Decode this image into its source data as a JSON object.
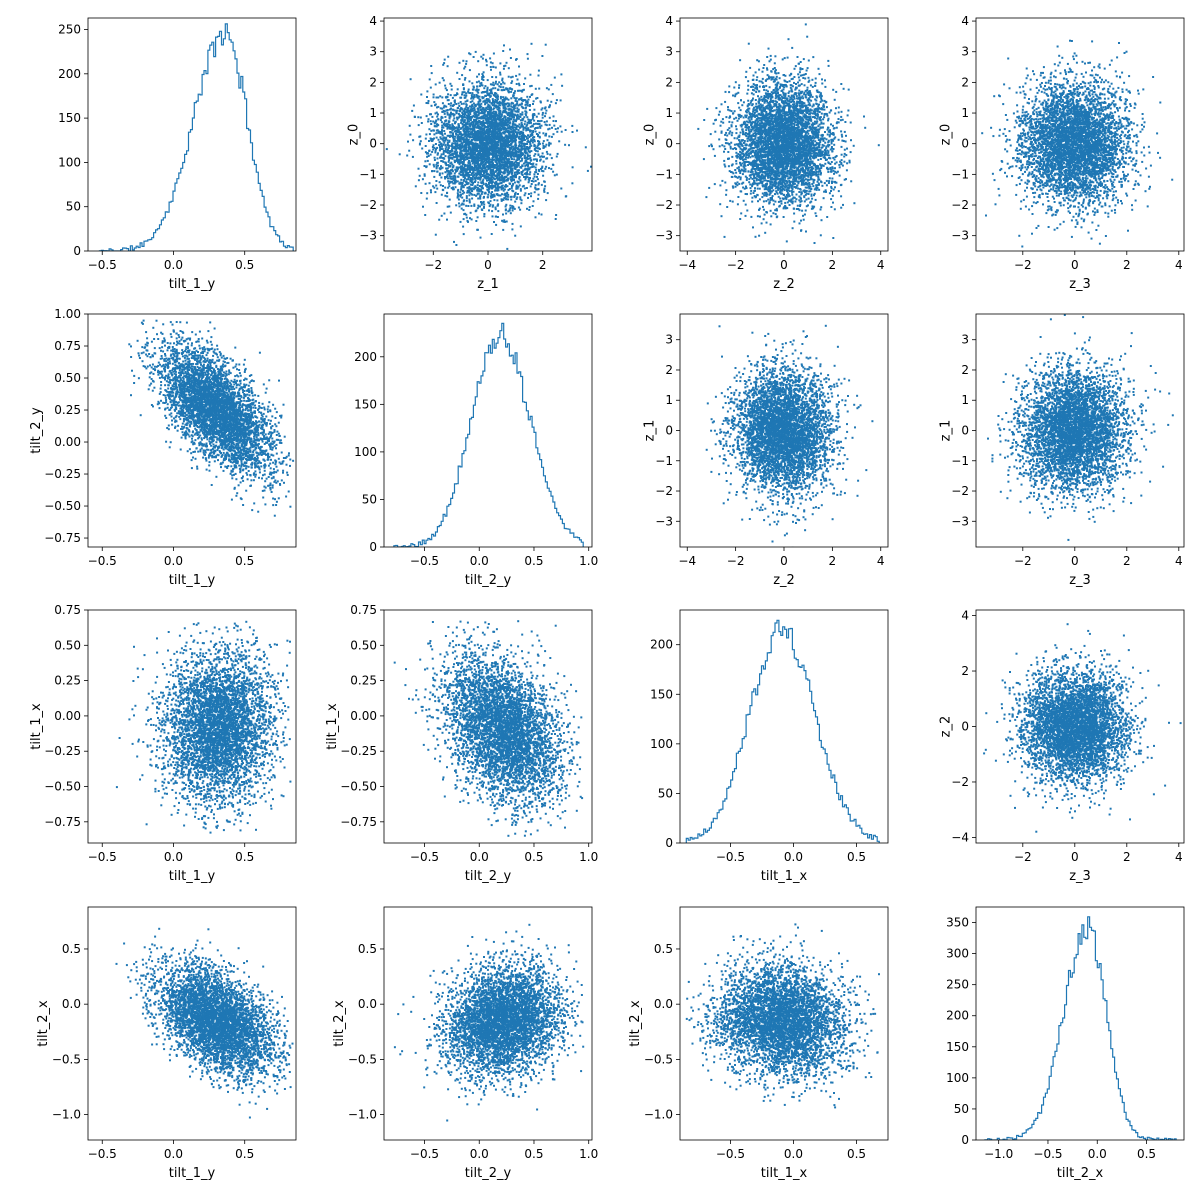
{
  "figure": {
    "rows": 4,
    "cols": 4,
    "color": "#1f77b4"
  },
  "chart_data": [
    {
      "type": "histogram",
      "row": 0,
      "col": 0,
      "xlabel": "tilt_1_y",
      "ylabel": "",
      "xlim": [
        -0.6,
        0.86
      ],
      "ylim": [
        0,
        263
      ],
      "xticks": [
        {
          "v": -0.5,
          "label": "−0.5"
        },
        {
          "v": 0,
          "label": "0.0"
        },
        {
          "v": 0.5,
          "label": "0.5"
        }
      ],
      "yticks": [
        {
          "v": 0,
          "label": "0"
        },
        {
          "v": 50,
          "label": "50"
        },
        {
          "v": 100,
          "label": "100"
        },
        {
          "v": 150,
          "label": "150"
        },
        {
          "v": 200,
          "label": "200"
        },
        {
          "v": 250,
          "label": "250"
        }
      ],
      "dist": {
        "center": 0.36,
        "left_width": 0.22,
        "right_width": 0.16,
        "xmin": -0.52,
        "xmax": 0.84,
        "peak": 245,
        "bins": 100,
        "seed": 11
      }
    },
    {
      "type": "scatter",
      "row": 0,
      "col": 1,
      "xlabel": "z_1",
      "ylabel": "z_0",
      "xlim": [
        -3.8,
        3.8
      ],
      "ylim": [
        -3.5,
        4.1
      ],
      "xticks": [
        {
          "v": -2,
          "label": "−2"
        },
        {
          "v": 0,
          "label": "0"
        },
        {
          "v": 2,
          "label": "2"
        }
      ],
      "yticks": [
        {
          "v": -3,
          "label": "−3"
        },
        {
          "v": -2,
          "label": "−2"
        },
        {
          "v": -1,
          "label": "−1"
        },
        {
          "v": 0,
          "label": "0"
        },
        {
          "v": 1,
          "label": "1"
        },
        {
          "v": 2,
          "label": "2"
        },
        {
          "v": 3,
          "label": "3"
        },
        {
          "v": 4,
          "label": "4"
        }
      ],
      "dist": {
        "mx": 0,
        "sx": 1,
        "my": 0,
        "sy": 1,
        "rho": 0,
        "n": 4500,
        "seed": 21
      }
    },
    {
      "type": "scatter",
      "row": 0,
      "col": 2,
      "xlabel": "z_2",
      "ylabel": "z_0",
      "xlim": [
        -4.3,
        4.3
      ],
      "ylim": [
        -3.5,
        4.1
      ],
      "xticks": [
        {
          "v": -4,
          "label": "−4"
        },
        {
          "v": -2,
          "label": "−2"
        },
        {
          "v": 0,
          "label": "0"
        },
        {
          "v": 2,
          "label": "2"
        },
        {
          "v": 4,
          "label": "4"
        }
      ],
      "yticks": [
        {
          "v": -3,
          "label": "−3"
        },
        {
          "v": -2,
          "label": "−2"
        },
        {
          "v": -1,
          "label": "−1"
        },
        {
          "v": 0,
          "label": "0"
        },
        {
          "v": 1,
          "label": "1"
        },
        {
          "v": 2,
          "label": "2"
        },
        {
          "v": 3,
          "label": "3"
        },
        {
          "v": 4,
          "label": "4"
        }
      ],
      "dist": {
        "mx": 0,
        "sx": 1,
        "my": 0,
        "sy": 1,
        "rho": 0,
        "n": 4500,
        "seed": 31
      }
    },
    {
      "type": "scatter",
      "row": 0,
      "col": 3,
      "xlabel": "z_3",
      "ylabel": "z_0",
      "xlim": [
        -3.8,
        4.2
      ],
      "ylim": [
        -3.5,
        4.1
      ],
      "xticks": [
        {
          "v": -2,
          "label": "−2"
        },
        {
          "v": 0,
          "label": "0"
        },
        {
          "v": 2,
          "label": "2"
        },
        {
          "v": 4,
          "label": "4"
        }
      ],
      "yticks": [
        {
          "v": -3,
          "label": "−3"
        },
        {
          "v": -2,
          "label": "−2"
        },
        {
          "v": -1,
          "label": "−1"
        },
        {
          "v": 0,
          "label": "0"
        },
        {
          "v": 1,
          "label": "1"
        },
        {
          "v": 2,
          "label": "2"
        },
        {
          "v": 3,
          "label": "3"
        },
        {
          "v": 4,
          "label": "4"
        }
      ],
      "dist": {
        "mx": 0,
        "sx": 1,
        "my": 0,
        "sy": 1,
        "rho": 0,
        "n": 4500,
        "seed": 41
      }
    },
    {
      "type": "scatter",
      "row": 1,
      "col": 0,
      "xlabel": "tilt_1_y",
      "ylabel": "tilt_2_y",
      "xlim": [
        -0.6,
        0.86
      ],
      "ylim": [
        -0.82,
        1.0
      ],
      "xticks": [
        {
          "v": -0.5,
          "label": "−0.5"
        },
        {
          "v": 0,
          "label": "0.0"
        },
        {
          "v": 0.5,
          "label": "0.5"
        }
      ],
      "yticks": [
        {
          "v": -0.75,
          "label": "−0.75"
        },
        {
          "v": -0.5,
          "label": "−0.50"
        },
        {
          "v": -0.25,
          "label": "−0.25"
        },
        {
          "v": 0,
          "label": "0.00"
        },
        {
          "v": 0.25,
          "label": "0.25"
        },
        {
          "v": 0.5,
          "label": "0.50"
        },
        {
          "v": 0.75,
          "label": "0.75"
        },
        {
          "v": 1.0,
          "label": "1.00"
        }
      ],
      "dist": {
        "mx": 0.3,
        "sx": 0.2,
        "my": 0.25,
        "sy": 0.25,
        "rho": -0.62,
        "n": 4500,
        "seed": 51,
        "xclip": [
          -0.55,
          0.84
        ],
        "yclip": [
          -0.78,
          0.95
        ]
      }
    },
    {
      "type": "histogram",
      "row": 1,
      "col": 1,
      "xlabel": "tilt_2_y",
      "ylabel": "",
      "xlim": [
        -0.87,
        1.03
      ],
      "ylim": [
        0,
        245
      ],
      "xticks": [
        {
          "v": -0.5,
          "label": "−0.5"
        },
        {
          "v": 0,
          "label": "0.0"
        },
        {
          "v": 0.5,
          "label": "0.5"
        },
        {
          "v": 1.0,
          "label": "1.0"
        }
      ],
      "yticks": [
        {
          "v": 0,
          "label": "0"
        },
        {
          "v": 50,
          "label": "50"
        },
        {
          "v": 100,
          "label": "100"
        },
        {
          "v": 150,
          "label": "150"
        },
        {
          "v": 200,
          "label": "200"
        }
      ],
      "dist": {
        "center": 0.18,
        "left_width": 0.25,
        "right_width": 0.28,
        "xmin": -0.78,
        "xmax": 0.95,
        "peak": 225,
        "bins": 100,
        "seed": 61
      }
    },
    {
      "type": "scatter",
      "row": 1,
      "col": 2,
      "xlabel": "z_2",
      "ylabel": "z_1",
      "xlim": [
        -4.3,
        4.3
      ],
      "ylim": [
        -3.85,
        3.85
      ],
      "xticks": [
        {
          "v": -4,
          "label": "−4"
        },
        {
          "v": -2,
          "label": "−2"
        },
        {
          "v": 0,
          "label": "0"
        },
        {
          "v": 2,
          "label": "2"
        },
        {
          "v": 4,
          "label": "4"
        }
      ],
      "yticks": [
        {
          "v": -3,
          "label": "−3"
        },
        {
          "v": -2,
          "label": "−2"
        },
        {
          "v": -1,
          "label": "−1"
        },
        {
          "v": 0,
          "label": "0"
        },
        {
          "v": 1,
          "label": "1"
        },
        {
          "v": 2,
          "label": "2"
        },
        {
          "v": 3,
          "label": "3"
        }
      ],
      "dist": {
        "mx": 0,
        "sx": 1,
        "my": 0,
        "sy": 1,
        "rho": 0,
        "n": 4500,
        "seed": 71
      }
    },
    {
      "type": "scatter",
      "row": 1,
      "col": 3,
      "xlabel": "z_3",
      "ylabel": "z_1",
      "xlim": [
        -3.8,
        4.2
      ],
      "ylim": [
        -3.85,
        3.85
      ],
      "xticks": [
        {
          "v": -2,
          "label": "−2"
        },
        {
          "v": 0,
          "label": "0"
        },
        {
          "v": 2,
          "label": "2"
        },
        {
          "v": 4,
          "label": "4"
        }
      ],
      "yticks": [
        {
          "v": -3,
          "label": "−3"
        },
        {
          "v": -2,
          "label": "−2"
        },
        {
          "v": -1,
          "label": "−1"
        },
        {
          "v": 0,
          "label": "0"
        },
        {
          "v": 1,
          "label": "1"
        },
        {
          "v": 2,
          "label": "2"
        },
        {
          "v": 3,
          "label": "3"
        }
      ],
      "dist": {
        "mx": 0,
        "sx": 1,
        "my": 0,
        "sy": 1,
        "rho": 0,
        "n": 4500,
        "seed": 81
      }
    },
    {
      "type": "scatter",
      "row": 2,
      "col": 0,
      "xlabel": "tilt_1_y",
      "ylabel": "tilt_1_x",
      "xlim": [
        -0.6,
        0.86
      ],
      "ylim": [
        -0.9,
        0.75
      ],
      "xticks": [
        {
          "v": -0.5,
          "label": "−0.5"
        },
        {
          "v": 0,
          "label": "0.0"
        },
        {
          "v": 0.5,
          "label": "0.5"
        }
      ],
      "yticks": [
        {
          "v": -0.75,
          "label": "−0.75"
        },
        {
          "v": -0.5,
          "label": "−0.50"
        },
        {
          "v": -0.25,
          "label": "−0.25"
        },
        {
          "v": 0,
          "label": "0.00"
        },
        {
          "v": 0.25,
          "label": "0.25"
        },
        {
          "v": 0.5,
          "label": "0.50"
        },
        {
          "v": 0.75,
          "label": "0.75"
        }
      ],
      "dist": {
        "mx": 0.32,
        "sx": 0.19,
        "my": -0.08,
        "sy": 0.26,
        "rho": 0.08,
        "n": 4500,
        "seed": 91,
        "xclip": [
          -0.55,
          0.84
        ],
        "yclip": [
          -0.85,
          0.68
        ]
      }
    },
    {
      "type": "scatter",
      "row": 2,
      "col": 1,
      "xlabel": "tilt_2_y",
      "ylabel": "tilt_1_x",
      "xlim": [
        -0.87,
        1.03
      ],
      "ylim": [
        -0.9,
        0.75
      ],
      "xticks": [
        {
          "v": -0.5,
          "label": "−0.5"
        },
        {
          "v": 0,
          "label": "0.0"
        },
        {
          "v": 0.5,
          "label": "0.5"
        },
        {
          "v": 1.0,
          "label": "1.0"
        }
      ],
      "yticks": [
        {
          "v": -0.75,
          "label": "−0.75"
        },
        {
          "v": -0.5,
          "label": "−0.50"
        },
        {
          "v": -0.25,
          "label": "−0.25"
        },
        {
          "v": 0,
          "label": "0.00"
        },
        {
          "v": 0.25,
          "label": "0.25"
        },
        {
          "v": 0.5,
          "label": "0.50"
        },
        {
          "v": 0.75,
          "label": "0.75"
        }
      ],
      "dist": {
        "mx": 0.22,
        "sx": 0.26,
        "my": -0.1,
        "sy": 0.26,
        "rho": -0.35,
        "n": 4500,
        "seed": 101,
        "xclip": [
          -0.8,
          0.95
        ],
        "yclip": [
          -0.85,
          0.68
        ]
      }
    },
    {
      "type": "histogram",
      "row": 2,
      "col": 2,
      "xlabel": "tilt_1_x",
      "ylabel": "",
      "xlim": [
        -0.9,
        0.75
      ],
      "ylim": [
        0,
        235
      ],
      "xticks": [
        {
          "v": -0.5,
          "label": "−0.5"
        },
        {
          "v": 0,
          "label": "0.0"
        },
        {
          "v": 0.5,
          "label": "0.5"
        }
      ],
      "yticks": [
        {
          "v": 0,
          "label": "0"
        },
        {
          "v": 50,
          "label": "50"
        },
        {
          "v": 100,
          "label": "100"
        },
        {
          "v": 150,
          "label": "150"
        },
        {
          "v": 200,
          "label": "200"
        }
      ],
      "dist": {
        "center": -0.1,
        "left_width": 0.25,
        "right_width": 0.27,
        "xmin": -0.85,
        "xmax": 0.68,
        "peak": 215,
        "bins": 100,
        "seed": 111
      }
    },
    {
      "type": "scatter",
      "row": 2,
      "col": 3,
      "xlabel": "z_3",
      "ylabel": "z_2",
      "xlim": [
        -3.8,
        4.2
      ],
      "ylim": [
        -4.2,
        4.2
      ],
      "xticks": [
        {
          "v": -2,
          "label": "−2"
        },
        {
          "v": 0,
          "label": "0"
        },
        {
          "v": 2,
          "label": "2"
        },
        {
          "v": 4,
          "label": "4"
        }
      ],
      "yticks": [
        {
          "v": -4,
          "label": "−4"
        },
        {
          "v": -2,
          "label": "−2"
        },
        {
          "v": 0,
          "label": "0"
        },
        {
          "v": 2,
          "label": "2"
        },
        {
          "v": 4,
          "label": "4"
        }
      ],
      "dist": {
        "mx": 0,
        "sx": 1,
        "my": 0,
        "sy": 1,
        "rho": 0,
        "n": 4500,
        "seed": 121
      }
    },
    {
      "type": "scatter",
      "row": 3,
      "col": 0,
      "xlabel": "tilt_1_y",
      "ylabel": "tilt_2_x",
      "xlim": [
        -0.6,
        0.86
      ],
      "ylim": [
        -1.23,
        0.88
      ],
      "xticks": [
        {
          "v": -0.5,
          "label": "−0.5"
        },
        {
          "v": 0,
          "label": "0.0"
        },
        {
          "v": 0.5,
          "label": "0.5"
        }
      ],
      "yticks": [
        {
          "v": -1.0,
          "label": "−1.0"
        },
        {
          "v": -0.5,
          "label": "−0.5"
        },
        {
          "v": 0,
          "label": "0.0"
        },
        {
          "v": 0.5,
          "label": "0.5"
        }
      ],
      "dist": {
        "mx": 0.3,
        "sx": 0.2,
        "my": -0.15,
        "sy": 0.24,
        "rho": -0.45,
        "n": 4500,
        "seed": 131,
        "xclip": [
          -0.55,
          0.84
        ],
        "yclip": [
          -1.18,
          0.8
        ]
      }
    },
    {
      "type": "scatter",
      "row": 3,
      "col": 1,
      "xlabel": "tilt_2_y",
      "ylabel": "tilt_2_x",
      "xlim": [
        -0.87,
        1.03
      ],
      "ylim": [
        -1.23,
        0.88
      ],
      "xticks": [
        {
          "v": -0.5,
          "label": "−0.5"
        },
        {
          "v": 0,
          "label": "0.0"
        },
        {
          "v": 0.5,
          "label": "0.5"
        },
        {
          "v": 1.0,
          "label": "1.0"
        }
      ],
      "yticks": [
        {
          "v": -1.0,
          "label": "−1.0"
        },
        {
          "v": -0.5,
          "label": "−0.5"
        },
        {
          "v": 0,
          "label": "0.0"
        },
        {
          "v": 0.5,
          "label": "0.5"
        }
      ],
      "dist": {
        "mx": 0.22,
        "sx": 0.26,
        "my": -0.15,
        "sy": 0.24,
        "rho": 0.18,
        "n": 4500,
        "seed": 141,
        "xclip": [
          -0.8,
          0.95
        ],
        "yclip": [
          -1.18,
          0.8
        ]
      }
    },
    {
      "type": "scatter",
      "row": 3,
      "col": 2,
      "xlabel": "tilt_1_x",
      "ylabel": "tilt_2_x",
      "xlim": [
        -0.9,
        0.75
      ],
      "ylim": [
        -1.23,
        0.88
      ],
      "xticks": [
        {
          "v": -0.5,
          "label": "−0.5"
        },
        {
          "v": 0,
          "label": "0.0"
        },
        {
          "v": 0.5,
          "label": "0.5"
        }
      ],
      "yticks": [
        {
          "v": -1.0,
          "label": "−1.0"
        },
        {
          "v": -0.5,
          "label": "−0.5"
        },
        {
          "v": 0,
          "label": "0.0"
        },
        {
          "v": 0.5,
          "label": "0.5"
        }
      ],
      "dist": {
        "mx": -0.1,
        "sx": 0.26,
        "my": -0.15,
        "sy": 0.24,
        "rho": -0.12,
        "n": 4500,
        "seed": 151,
        "xclip": [
          -0.85,
          0.68
        ],
        "yclip": [
          -1.18,
          0.8
        ]
      }
    },
    {
      "type": "histogram",
      "row": 3,
      "col": 3,
      "xlabel": "tilt_2_x",
      "ylabel": "",
      "xlim": [
        -1.23,
        0.88
      ],
      "ylim": [
        0,
        375
      ],
      "xticks": [
        {
          "v": -1.0,
          "label": "−1.0"
        },
        {
          "v": -0.5,
          "label": "−0.5"
        },
        {
          "v": 0,
          "label": "0.0"
        },
        {
          "v": 0.5,
          "label": "0.5"
        }
      ],
      "yticks": [
        {
          "v": 0,
          "label": "0"
        },
        {
          "v": 50,
          "label": "50"
        },
        {
          "v": 100,
          "label": "100"
        },
        {
          "v": 150,
          "label": "150"
        },
        {
          "v": 200,
          "label": "200"
        },
        {
          "v": 250,
          "label": "250"
        },
        {
          "v": 300,
          "label": "300"
        },
        {
          "v": 350,
          "label": "350"
        }
      ],
      "dist": {
        "center": -0.1,
        "left_width": 0.24,
        "right_width": 0.19,
        "xmin": -1.15,
        "xmax": 0.8,
        "peak": 345,
        "bins": 100,
        "seed": 161
      }
    }
  ]
}
